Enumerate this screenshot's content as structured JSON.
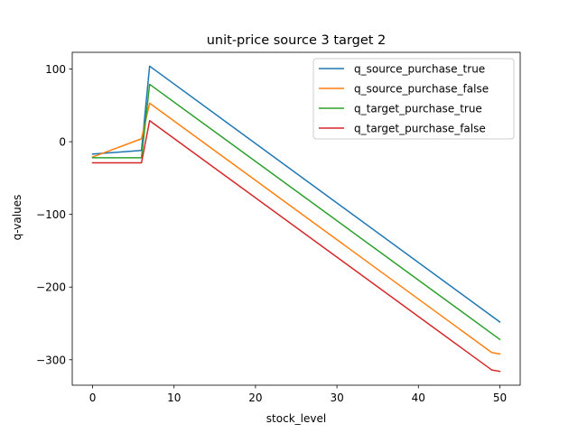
{
  "chart_data": {
    "type": "line",
    "title": "unit-price source 3 target 2",
    "xlabel": "stock_level",
    "ylabel": "q-values",
    "xlim": [
      -2.5,
      52.5
    ],
    "ylim": [
      -335,
      123
    ],
    "xticks": [
      0,
      10,
      20,
      30,
      40,
      50
    ],
    "yticks": [
      100,
      0,
      -100,
      -200,
      -300
    ],
    "xtick_labels": [
      "0",
      "10",
      "20",
      "30",
      "40",
      "50"
    ],
    "ytick_labels": [
      "100",
      "0",
      "−100",
      "−200",
      "−300"
    ],
    "grid": false,
    "legend_position": "top-right",
    "series": [
      {
        "name": "q_source_purchase_true",
        "color": "#1f77b4",
        "points": [
          [
            0,
            -17
          ],
          [
            6,
            -12
          ],
          [
            7,
            104
          ],
          [
            50,
            -248
          ]
        ]
      },
      {
        "name": "q_source_purchase_false",
        "color": "#ff7f0e",
        "points": [
          [
            0,
            -21
          ],
          [
            6,
            4
          ],
          [
            7,
            53
          ],
          [
            49,
            -290
          ],
          [
            50,
            -292
          ]
        ]
      },
      {
        "name": "q_target_purchase_true",
        "color": "#2ca02c",
        "points": [
          [
            0,
            -22
          ],
          [
            6,
            -22
          ],
          [
            7,
            79
          ],
          [
            50,
            -272
          ]
        ]
      },
      {
        "name": "q_target_purchase_false",
        "color": "#d62728",
        "points": [
          [
            0,
            -29
          ],
          [
            6,
            -29
          ],
          [
            7,
            29
          ],
          [
            49,
            -314
          ],
          [
            50,
            -316
          ]
        ]
      }
    ]
  }
}
